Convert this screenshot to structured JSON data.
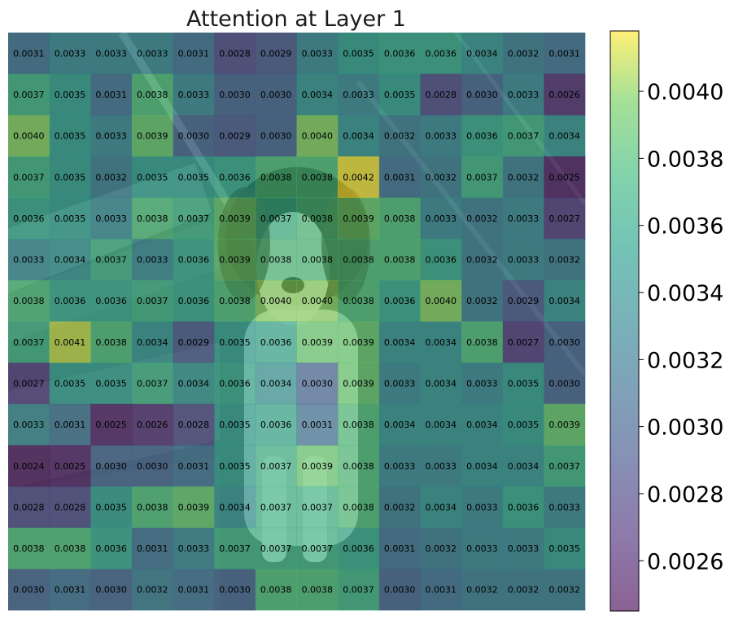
{
  "chart_data": {
    "type": "heatmap",
    "title": "Attention at Layer 1",
    "background_image": "photo of a dog (black and white spaniel) sitting on steps",
    "rows": 14,
    "cols": 14,
    "values": [
      [
        0.0031,
        0.0033,
        0.0033,
        0.0033,
        0.0031,
        0.0028,
        0.0029,
        0.0033,
        0.0035,
        0.0036,
        0.0036,
        0.0034,
        0.0032,
        0.0031
      ],
      [
        0.0037,
        0.0035,
        0.0031,
        0.0038,
        0.0033,
        0.003,
        0.003,
        0.0034,
        0.0033,
        0.0035,
        0.0028,
        0.003,
        0.0033,
        0.0026
      ],
      [
        0.004,
        0.0035,
        0.0033,
        0.0039,
        0.003,
        0.0029,
        0.003,
        0.004,
        0.0034,
        0.0032,
        0.0033,
        0.0036,
        0.0037,
        0.0034
      ],
      [
        0.0037,
        0.0035,
        0.0032,
        0.0035,
        0.0035,
        0.0036,
        0.0038,
        0.0038,
        0.0042,
        0.0031,
        0.0032,
        0.0037,
        0.0032,
        0.0025
      ],
      [
        0.0036,
        0.0035,
        0.0033,
        0.0038,
        0.0037,
        0.0039,
        0.0037,
        0.0038,
        0.0039,
        0.0038,
        0.0033,
        0.0032,
        0.0033,
        0.0027
      ],
      [
        0.0033,
        0.0034,
        0.0037,
        0.0033,
        0.0036,
        0.0039,
        0.0038,
        0.0038,
        0.0038,
        0.0038,
        0.0036,
        0.0032,
        0.0033,
        0.0032
      ],
      [
        0.0038,
        0.0036,
        0.0036,
        0.0037,
        0.0036,
        0.0038,
        0.004,
        0.004,
        0.0038,
        0.0036,
        0.004,
        0.0032,
        0.0029,
        0.0034
      ],
      [
        0.0037,
        0.0041,
        0.0038,
        0.0034,
        0.0029,
        0.0035,
        0.0036,
        0.0039,
        0.0039,
        0.0034,
        0.0034,
        0.0038,
        0.0027,
        0.003
      ],
      [
        0.0027,
        0.0035,
        0.0035,
        0.0037,
        0.0034,
        0.0036,
        0.0034,
        0.003,
        0.0039,
        0.0033,
        0.0034,
        0.0033,
        0.0035,
        0.003
      ],
      [
        0.0033,
        0.0031,
        0.0025,
        0.0026,
        0.0028,
        0.0035,
        0.0036,
        0.0031,
        0.0038,
        0.0034,
        0.0034,
        0.0034,
        0.0035,
        0.0039
      ],
      [
        0.0024,
        0.0025,
        0.003,
        0.003,
        0.0031,
        0.0035,
        0.0037,
        0.0039,
        0.0038,
        0.0033,
        0.0033,
        0.0034,
        0.0034,
        0.0037
      ],
      [
        0.0028,
        0.0028,
        0.0035,
        0.0038,
        0.0039,
        0.0034,
        0.0037,
        0.0037,
        0.0038,
        0.0032,
        0.0034,
        0.0033,
        0.0036,
        0.0033
      ],
      [
        0.0038,
        0.0038,
        0.0036,
        0.0031,
        0.0033,
        0.0037,
        0.0037,
        0.0037,
        0.0036,
        0.0031,
        0.0032,
        0.0033,
        0.0033,
        0.0035
      ],
      [
        0.003,
        0.0031,
        0.003,
        0.0032,
        0.0031,
        0.003,
        0.0038,
        0.0038,
        0.0037,
        0.003,
        0.0031,
        0.0032,
        0.0032,
        0.0032
      ]
    ],
    "colormap": "viridis",
    "overlay_alpha": 0.6,
    "color_range": [
      0.00245,
      0.00418
    ],
    "colorbar": {
      "ticks": [
        0.0026,
        0.0028,
        0.003,
        0.0032,
        0.0034,
        0.0036,
        0.0038,
        0.004
      ],
      "tick_labels": [
        "0.0026",
        "0.0028",
        "0.0030",
        "0.0032",
        "0.0034",
        "0.0036",
        "0.0038",
        "0.0040"
      ]
    },
    "xlabel": "",
    "ylabel": "",
    "grid": false
  }
}
